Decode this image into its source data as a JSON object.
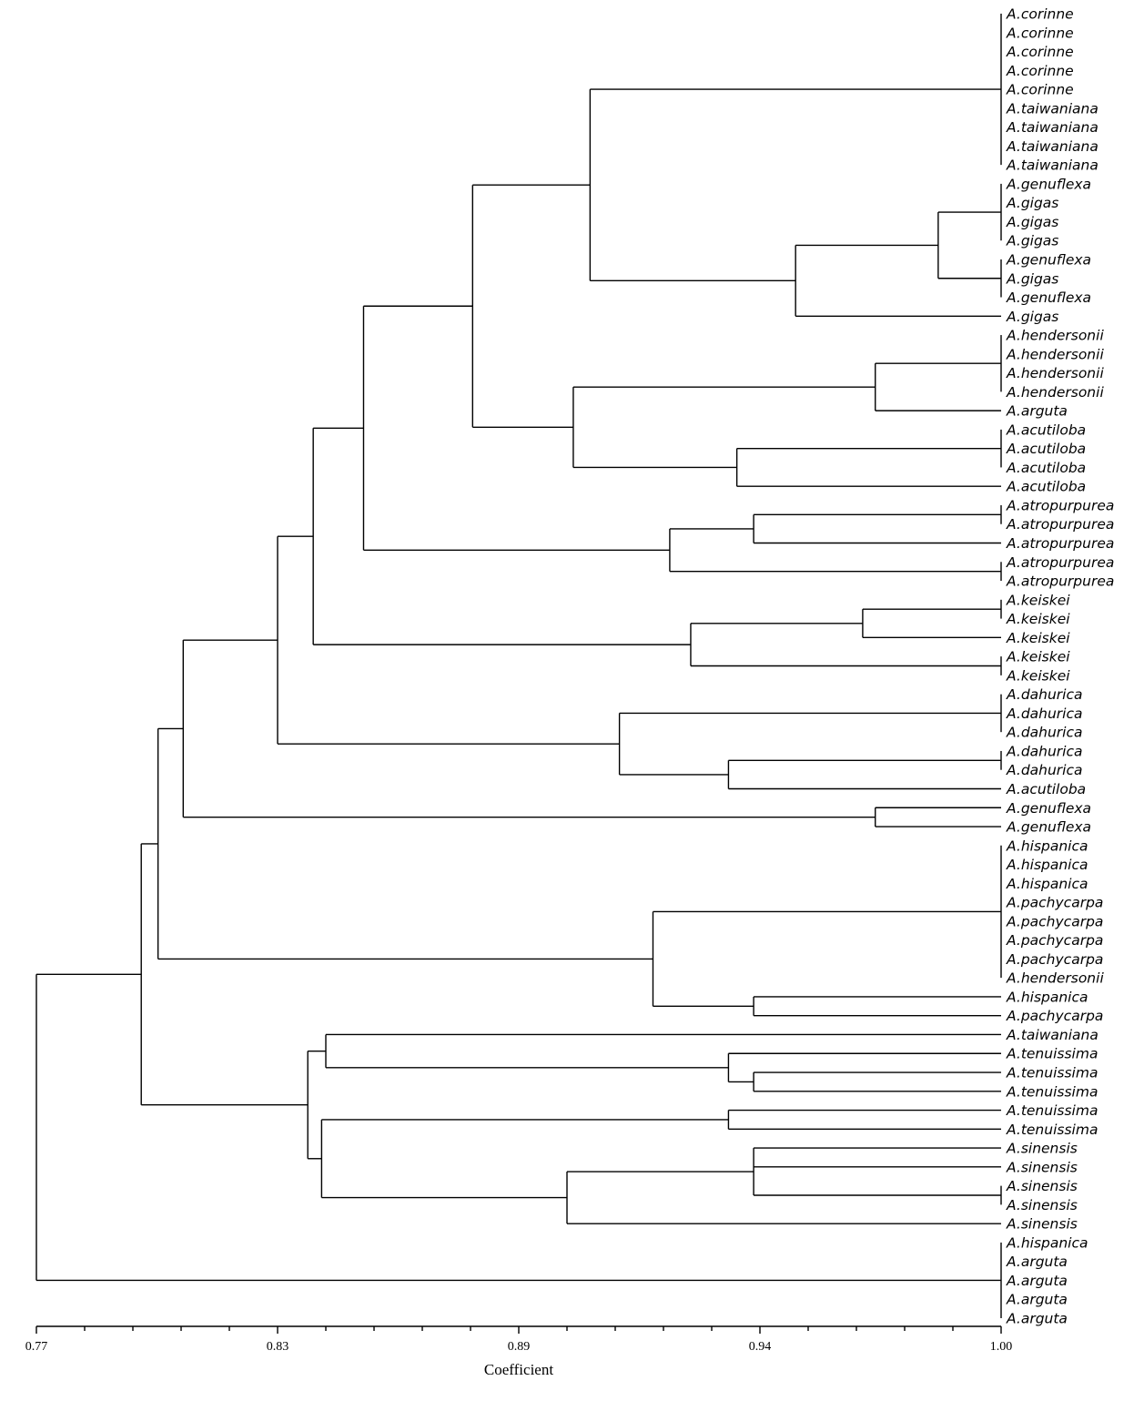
{
  "axis": {
    "title": "Coefficient",
    "range": [
      0.77,
      1.0
    ],
    "tick_labels": [
      "0.77",
      "0.83",
      "0.89",
      "0.94",
      "1.00"
    ],
    "minor_ticks_per_major": 5
  },
  "leaves": [
    "A.corinne",
    "A.corinne",
    "A.corinne",
    "A.corinne",
    "A.corinne",
    "A.taiwaniana",
    "A.taiwaniana",
    "A.taiwaniana",
    "A.taiwaniana",
    "A.genuflexa",
    "A.gigas",
    "A.gigas",
    "A.gigas",
    "A.genuflexa",
    "A.gigas",
    "A.genuflexa",
    "A.gigas",
    "A.hendersonii",
    "A.hendersonii",
    "A.hendersonii",
    "A.hendersonii",
    "A.arguta",
    "A.acutiloba",
    "A.acutiloba",
    "A.acutiloba",
    "A.acutiloba",
    "A.atropurpurea",
    "A.atropurpurea",
    "A.atropurpurea",
    "A.atropurpurea",
    "A.atropurpurea",
    "A.keiskei",
    "A.keiskei",
    "A.keiskei",
    "A.keiskei",
    "A.keiskei",
    "A.dahurica",
    "A.dahurica",
    "A.dahurica",
    "A.dahurica",
    "A.dahurica",
    "A.acutiloba",
    "A.genuflexa",
    "A.genuflexa",
    "A.hispanica",
    "A.hispanica",
    "A.hispanica",
    "A.pachycarpa",
    "A.pachycarpa",
    "A.pachycarpa",
    "A.pachycarpa",
    "A.hendersonii",
    "A.hispanica",
    "A.pachycarpa",
    "A.taiwaniana",
    "A.tenuissima",
    "A.tenuissima",
    "A.tenuissima",
    "A.tenuissima",
    "A.tenuissima",
    "A.sinensis",
    "A.sinensis",
    "A.sinensis",
    "A.sinensis",
    "A.sinensis",
    "A.hispanica",
    "A.arguta",
    "A.arguta",
    "A.arguta",
    "A.arguta"
  ],
  "tree": {
    "h": 0.77,
    "c": [
      {
        "h": 0.795,
        "c": [
          {
            "h": 0.799,
            "c": [
              {
                "h": 0.805,
                "c": [
                  {
                    "h": 0.8275,
                    "c": [
                      {
                        "h": 0.836,
                        "c": [
                          {
                            "h": 0.848,
                            "c": [
                              {
                                "h": 0.874,
                                "c": [
                                  {
                                    "h": 0.902,
                                    "c": [
                                      {
                                        "h": 1.0,
                                        "c": [
                                          0,
                                          1,
                                          2,
                                          3,
                                          4,
                                          5,
                                          6,
                                          7,
                                          8
                                        ]
                                      },
                                      {
                                        "h": 0.951,
                                        "c": [
                                          {
                                            "h": 0.985,
                                            "c": [
                                              {
                                                "h": 1.0,
                                                "c": [
                                                  9,
                                                  10,
                                                  11,
                                                  12
                                                ]
                                              },
                                              {
                                                "h": 1.0,
                                                "c": [
                                                  13,
                                                  14,
                                                  15
                                                ]
                                              }
                                            ]
                                          },
                                          16
                                        ]
                                      }
                                    ]
                                  },
                                  {
                                    "h": 0.898,
                                    "c": [
                                      {
                                        "h": 0.97,
                                        "c": [
                                          {
                                            "h": 1.0,
                                            "c": [
                                              17,
                                              18,
                                              19,
                                              20
                                            ]
                                          },
                                          21
                                        ]
                                      },
                                      {
                                        "h": 0.937,
                                        "c": [
                                          {
                                            "h": 1.0,
                                            "c": [
                                              22,
                                              23,
                                              24
                                            ]
                                          },
                                          25
                                        ]
                                      }
                                    ]
                                  }
                                ]
                              },
                              {
                                "h": 0.921,
                                "c": [
                                  {
                                    "h": 0.941,
                                    "c": [
                                      {
                                        "h": 1.0,
                                        "c": [
                                          26,
                                          27
                                        ]
                                      },
                                      28
                                    ]
                                  },
                                  {
                                    "h": 1.0,
                                    "c": [
                                      29,
                                      30
                                    ]
                                  }
                                ]
                              }
                            ]
                          },
                          {
                            "h": 0.926,
                            "c": [
                              {
                                "h": 0.967,
                                "c": [
                                  {
                                    "h": 1.0,
                                    "c": [
                                      31,
                                      32
                                    ]
                                  },
                                  33
                                ]
                              },
                              {
                                "h": 1.0,
                                "c": [
                                  34,
                                  35
                                ]
                              }
                            ]
                          }
                        ]
                      },
                      {
                        "h": 0.909,
                        "c": [
                          {
                            "h": 1.0,
                            "c": [
                              36,
                              37,
                              38
                            ]
                          },
                          {
                            "h": 0.935,
                            "c": [
                              {
                                "h": 1.0,
                                "c": [
                                  39,
                                  40
                                ]
                              },
                              41
                            ]
                          }
                        ]
                      }
                    ]
                  },
                  {
                    "h": 0.97,
                    "c": [
                      42,
                      43
                    ]
                  }
                ]
              },
              {
                "h": 0.917,
                "c": [
                  {
                    "h": 1.0,
                    "c": [
                      44,
                      45,
                      46,
                      47,
                      48,
                      49,
                      50,
                      51
                    ]
                  },
                  {
                    "h": 0.941,
                    "c": [
                      52,
                      53
                    ]
                  }
                ]
              }
            ]
          },
          {
            "h": 0.8347,
            "c": [
              {
                "h": 0.839,
                "c": [
                  54,
                  {
                    "h": 0.935,
                    "c": [
                      55,
                      {
                        "h": 0.941,
                        "c": [
                          56,
                          57
                        ]
                      }
                    ]
                  }
                ]
              },
              {
                "h": 0.838,
                "c": [
                  {
                    "h": 0.935,
                    "c": [
                      58,
                      59
                    ]
                  },
                  {
                    "h": 0.8965,
                    "c": [
                      {
                        "h": 0.941,
                        "c": [
                          60,
                          61,
                          {
                            "h": 1.0,
                            "c": [
                              62,
                              63
                            ]
                          }
                        ]
                      },
                      64
                    ]
                  }
                ]
              }
            ]
          }
        ]
      },
      {
        "h": 1.0,
        "c": [
          65,
          66,
          67,
          68,
          69
        ]
      }
    ]
  }
}
